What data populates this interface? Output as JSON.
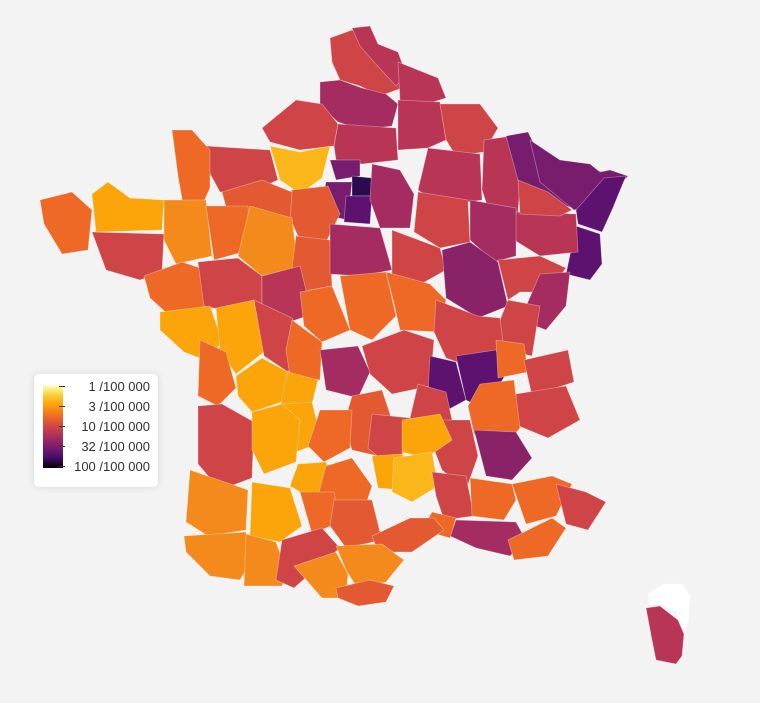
{
  "legend": {
    "ticks": [
      {
        "label": "1 /100 000",
        "value": 1
      },
      {
        "label": "3 /100 000",
        "value": 3
      },
      {
        "label": "10 /100 000",
        "value": 10
      },
      {
        "label": "32 /100 000",
        "value": 32
      },
      {
        "label": "100 /100 000",
        "value": 100
      }
    ]
  },
  "scale": {
    "type": "log",
    "domain": [
      1,
      100
    ],
    "colors": [
      "#fcffa4",
      "#f9cb35",
      "#fca50a",
      "#ed6925",
      "#cf4446",
      "#a52c60",
      "#781c6d",
      "#4a0c6b",
      "#000004"
    ]
  },
  "colors": {
    "background": "#f3f3f3",
    "legend_background": "#ffffff",
    "corsica_north": "#ffffff"
  }
}
